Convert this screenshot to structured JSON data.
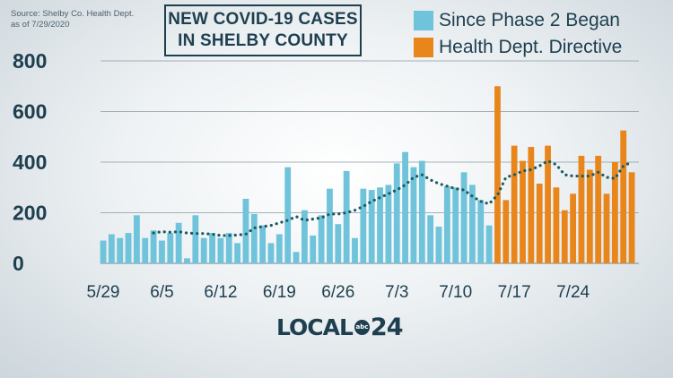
{
  "source_text": "Source: Shelby Co. Health Dept.\nas of 7/29/2020",
  "title_lines": [
    "NEW COVID-19 CASES",
    "IN SHELBY COUNTY"
  ],
  "legend": [
    {
      "label": "Since Phase 2 Began",
      "color": "#6fc3da"
    },
    {
      "label": "Health Dept. Directive",
      "color": "#e8861c"
    }
  ],
  "logo": {
    "main": "LOCAL",
    "abc": "abc",
    "num": "24"
  },
  "colors": {
    "text": "#1e3f4f",
    "avg_line": "#1e5a63",
    "grid": "#8a9aa5"
  },
  "chart_data": {
    "type": "bar",
    "ylim": [
      0,
      800
    ],
    "yticks": [
      0,
      200,
      400,
      600,
      800
    ],
    "grid": "horizontal",
    "x_tick_labels": [
      {
        "label": "5/29",
        "index": 0
      },
      {
        "label": "6/5",
        "index": 7
      },
      {
        "label": "6/12",
        "index": 14
      },
      {
        "label": "6/19",
        "index": 21
      },
      {
        "label": "6/26",
        "index": 28
      },
      {
        "label": "7/3",
        "index": 35
      },
      {
        "label": "7/10",
        "index": 42
      },
      {
        "label": "7/17",
        "index": 49
      },
      {
        "label": "7/24",
        "index": 56
      }
    ],
    "series": [
      {
        "name": "Since Phase 2 Began",
        "start_index": 0,
        "values": [
          90,
          115,
          100,
          120,
          190,
          100,
          130,
          90,
          120,
          160,
          20,
          190,
          100,
          120,
          100,
          120,
          80,
          255,
          195,
          150,
          80,
          115,
          380,
          45,
          210,
          110,
          190,
          295,
          155,
          365,
          100,
          295,
          290,
          300,
          310,
          395,
          440,
          380,
          405,
          190,
          145,
          305,
          300,
          360,
          310,
          250,
          150
        ]
      },
      {
        "name": "Health Dept. Directive",
        "start_index": 47,
        "values": [
          700,
          250,
          465,
          405,
          460,
          315,
          465,
          300,
          210,
          275,
          425,
          370,
          425,
          275,
          400,
          525,
          360
        ]
      }
    ],
    "moving_average": [
      null,
      null,
      null,
      null,
      null,
      null,
      120,
      125,
      123,
      125,
      120,
      118,
      118,
      115,
      110,
      110,
      112,
      115,
      140,
      145,
      150,
      160,
      170,
      185,
      170,
      175,
      180,
      195,
      195,
      200,
      210,
      225,
      245,
      260,
      275,
      290,
      310,
      340,
      350,
      330,
      315,
      305,
      295,
      290,
      265,
      245,
      235,
      270,
      340,
      350,
      365,
      370,
      385,
      405,
      390,
      350,
      345,
      345,
      345,
      360,
      340,
      335,
      385,
      400
    ]
  }
}
